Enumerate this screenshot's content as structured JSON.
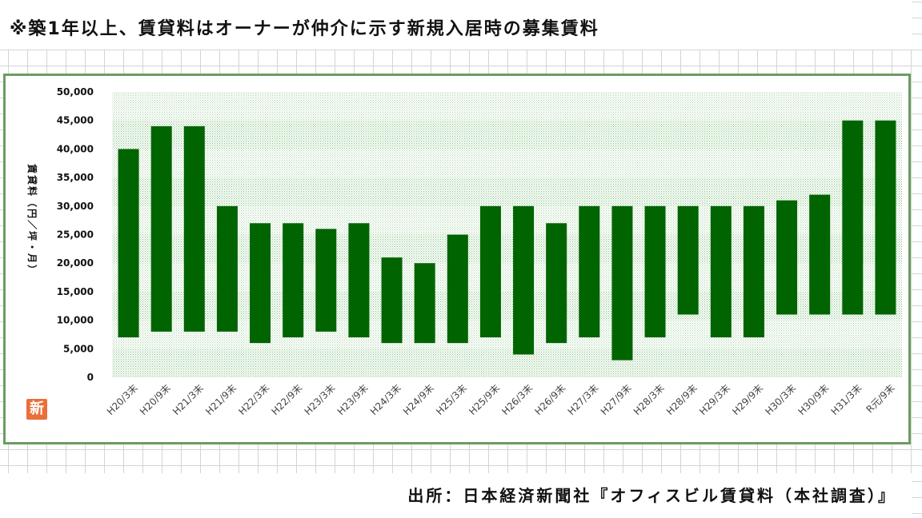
{
  "title": "※築1年以上、賃貸料はオーナーが仲介に示す新規入居時の募集賃料",
  "source": "出所：日本経済新聞社『オフィスビル賃貸料（本社調査）』",
  "logo_text": "新",
  "colors": {
    "bar": "#006400",
    "plot_pattern": "#7fbf7f",
    "frame": "#6a9d61"
  },
  "chart_data": {
    "type": "bar",
    "subtype": "floating-range",
    "ylabel": "賃貸料（円／坪・月）",
    "ylim": [
      0,
      50000
    ],
    "yticks": [
      0,
      5000,
      10000,
      15000,
      20000,
      25000,
      30000,
      35000,
      40000,
      45000,
      50000
    ],
    "ytick_labels": [
      "0",
      "5,000",
      "10,000",
      "15,000",
      "20,000",
      "25,000",
      "30,000",
      "35,000",
      "40,000",
      "45,000",
      "50,000"
    ],
    "categories": [
      "H20/3末",
      "H20/9末",
      "H21/3末",
      "H21/9末",
      "H22/3末",
      "H22/9末",
      "H23/3末",
      "H23/9末",
      "H24/3末",
      "H24/9末",
      "H25/3末",
      "H25/9末",
      "H26/3末",
      "H26/9末",
      "H27/3末",
      "H27/9末",
      "H28/3末",
      "H28/9末",
      "H29/3末",
      "H29/9末",
      "H30/3末",
      "H30/9末",
      "H31/3末",
      "R元/9末"
    ],
    "series": [
      {
        "high": [
          40000,
          44000,
          44000,
          30000,
          27000,
          27000,
          26000,
          27000,
          21000,
          20000,
          25000,
          30000,
          30000,
          27000,
          30000,
          30000,
          30000,
          30000,
          30000,
          30000,
          31000,
          32000,
          45000,
          45000
        ],
        "low": [
          7000,
          8000,
          8000,
          8000,
          6000,
          7000,
          8000,
          7000,
          6000,
          6000,
          6000,
          7000,
          4000,
          6000,
          7000,
          3000,
          7000,
          11000,
          7000,
          7000,
          11000,
          11000,
          11000,
          11000
        ]
      }
    ],
    "grid": false,
    "legend": "none"
  }
}
